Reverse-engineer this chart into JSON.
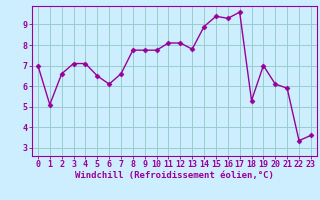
{
  "x": [
    0,
    1,
    2,
    3,
    4,
    5,
    6,
    7,
    8,
    9,
    10,
    11,
    12,
    13,
    14,
    15,
    16,
    17,
    18,
    19,
    20,
    21,
    22,
    23
  ],
  "y": [
    7.0,
    5.1,
    6.6,
    7.1,
    7.1,
    6.5,
    6.1,
    6.6,
    7.75,
    7.75,
    7.75,
    8.1,
    8.1,
    7.8,
    8.9,
    9.4,
    9.3,
    9.6,
    5.3,
    7.0,
    6.1,
    5.9,
    3.35,
    3.6
  ],
  "line_color": "#990099",
  "marker": "D",
  "marker_size": 2.5,
  "linewidth": 1.0,
  "bg_color": "#cceeff",
  "grid_color": "#99cccc",
  "ylabel_ticks": [
    3,
    4,
    5,
    6,
    7,
    8,
    9
  ],
  "ylim": [
    2.6,
    9.9
  ],
  "xlim": [
    -0.5,
    23.5
  ],
  "xlabel": "Windchill (Refroidissement éolien,°C)",
  "xlabel_fontsize": 6.5,
  "tick_fontsize": 6.0
}
